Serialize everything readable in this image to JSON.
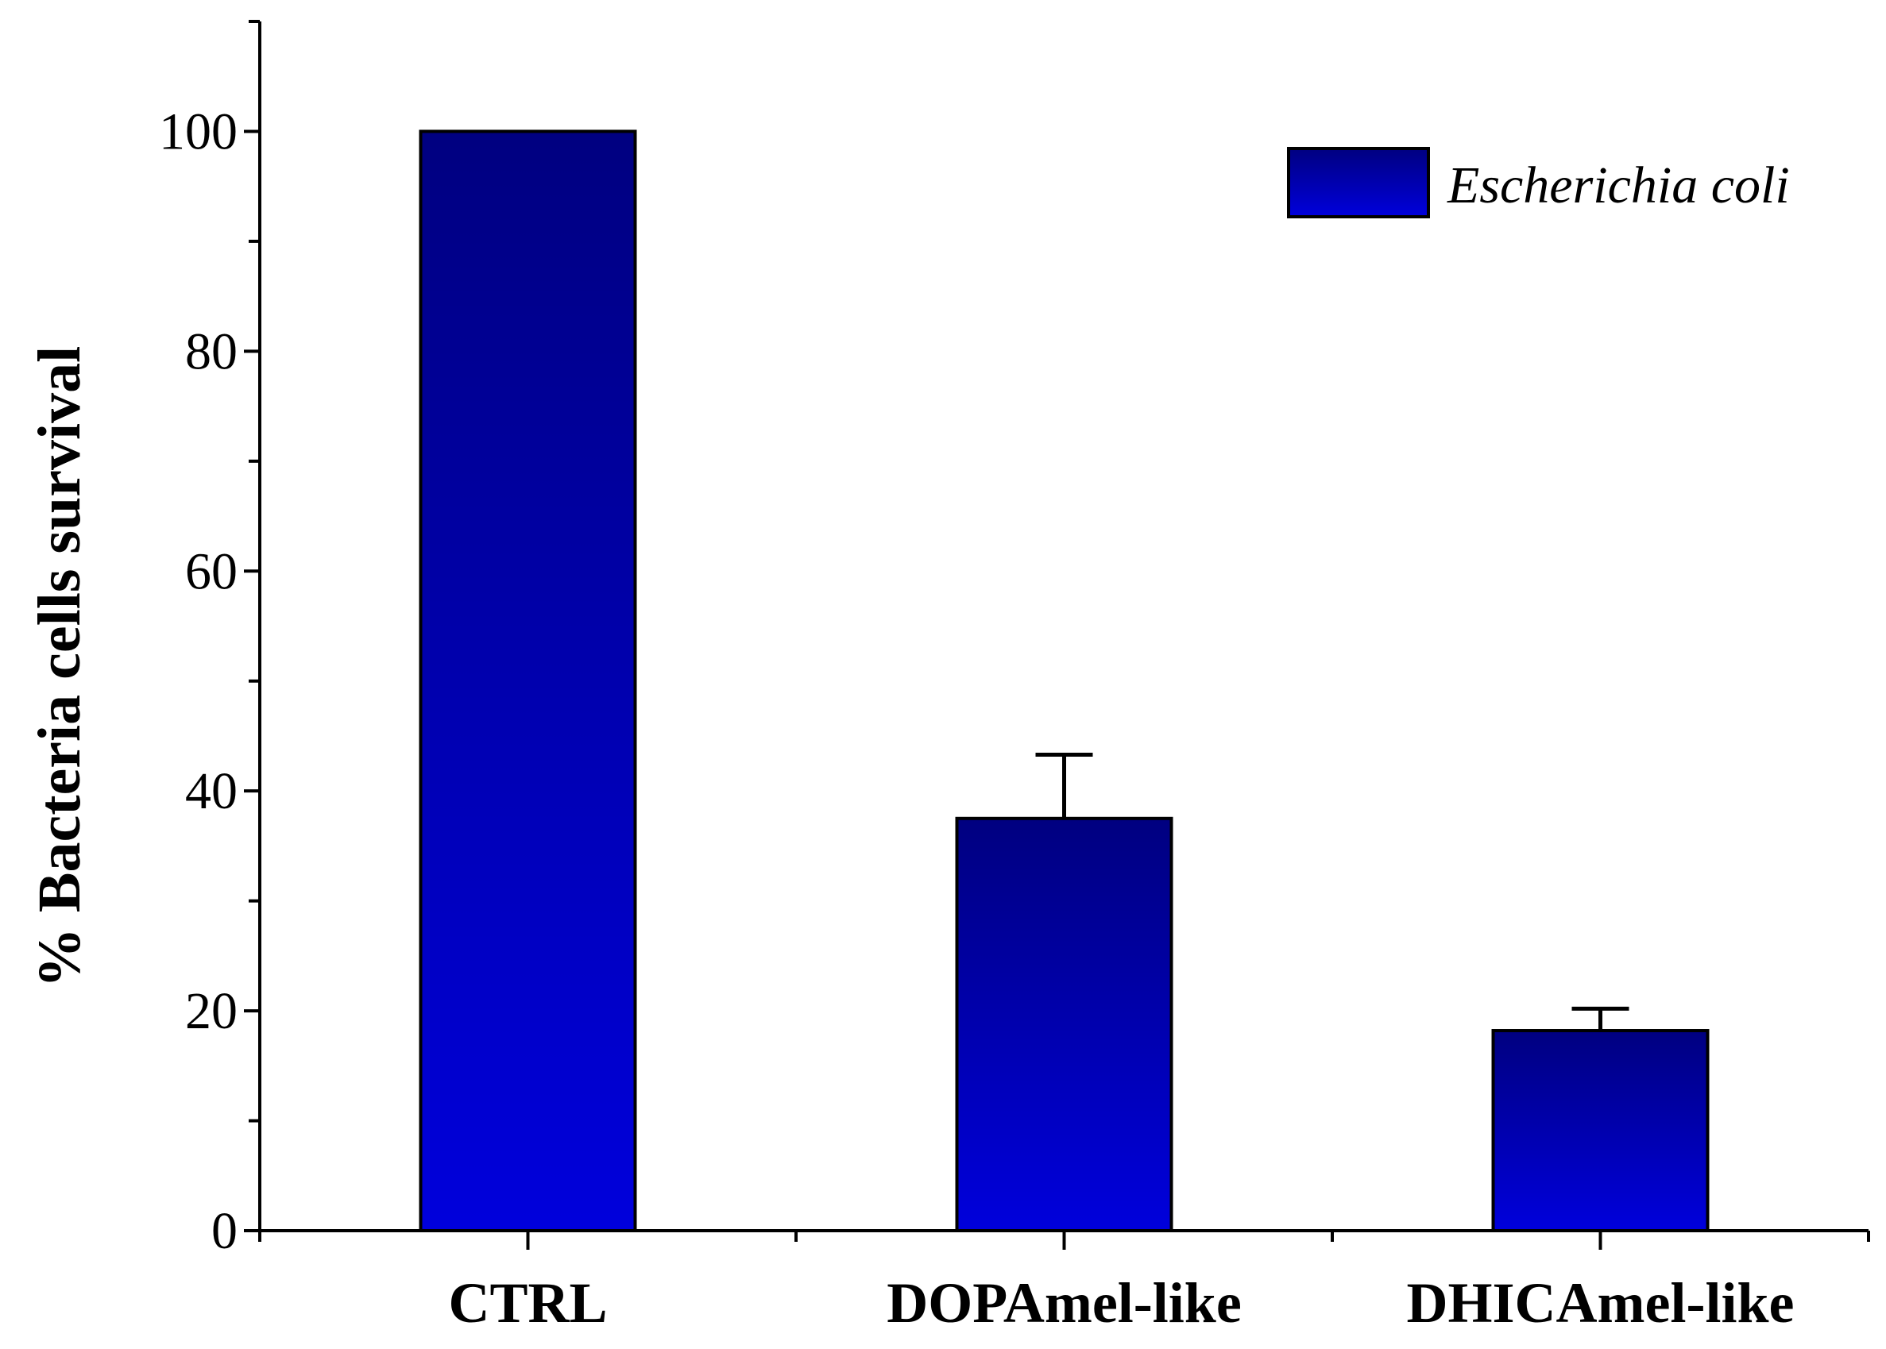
{
  "chart_data": {
    "type": "bar",
    "title": "",
    "xlabel": "",
    "ylabel": "% Bacteria cells survival",
    "ylim": [
      0,
      110
    ],
    "yticks": [
      0,
      20,
      40,
      60,
      80,
      100
    ],
    "yminor_step": 10,
    "categories": [
      "CTRL",
      "DOPAmel-like",
      "DHICAmel-like"
    ],
    "series": [
      {
        "name": "Escherichia coli",
        "values": [
          100,
          37.5,
          18.2
        ],
        "errors": [
          0,
          5.8,
          2.0
        ]
      }
    ],
    "legend_position": "top-right",
    "grid": false,
    "colors": {
      "bar_top": "#000080",
      "bar_bottom": "#0000dc",
      "axis": "#000000"
    }
  }
}
